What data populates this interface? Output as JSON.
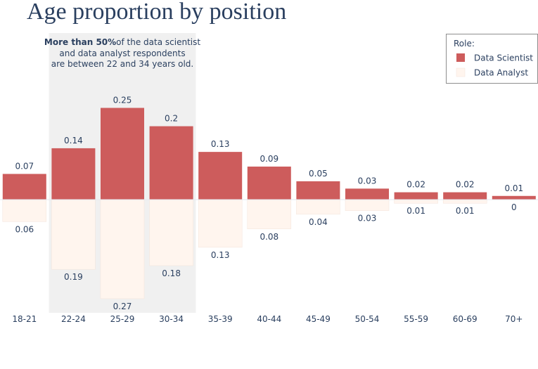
{
  "chart_data": {
    "type": "bar",
    "title": "Age proportion by position",
    "categories": [
      "18-21",
      "22-24",
      "25-29",
      "30-34",
      "35-39",
      "40-44",
      "45-49",
      "50-54",
      "55-59",
      "60-69",
      "70+"
    ],
    "series": [
      {
        "name": "Data Scientist",
        "color": "#cd5c5c",
        "direction": "up",
        "values": [
          0.07,
          0.14,
          0.25,
          0.2,
          0.13,
          0.09,
          0.05,
          0.03,
          0.02,
          0.02,
          0.01
        ],
        "labels": [
          "0.07",
          "0.14",
          "0.25",
          "0.2",
          "0.13",
          "0.09",
          "0.05",
          "0.03",
          "0.02",
          "0.02",
          "0.01"
        ]
      },
      {
        "name": "Data Analyst",
        "color": "#fff5ee",
        "direction": "down",
        "values": [
          0.06,
          0.19,
          0.27,
          0.18,
          0.13,
          0.08,
          0.04,
          0.03,
          0.01,
          0.01,
          0.0
        ],
        "labels": [
          "0.06",
          "0.19",
          "0.27",
          "0.18",
          "0.13",
          "0.08",
          "0.04",
          "0.03",
          "0.01",
          "0.01",
          "0"
        ]
      }
    ],
    "legend": {
      "title": "Role:",
      "position": "top-right"
    },
    "highlight": {
      "categories": [
        "22-24",
        "25-29",
        "30-34"
      ],
      "color": "#f0f0f0"
    },
    "annotation": {
      "bold": "More than 50%",
      "rest": "of the data scientist",
      "line2": "and data analyst respondents",
      "line3": "are between 22 and 34 years old."
    },
    "grid": false
  }
}
